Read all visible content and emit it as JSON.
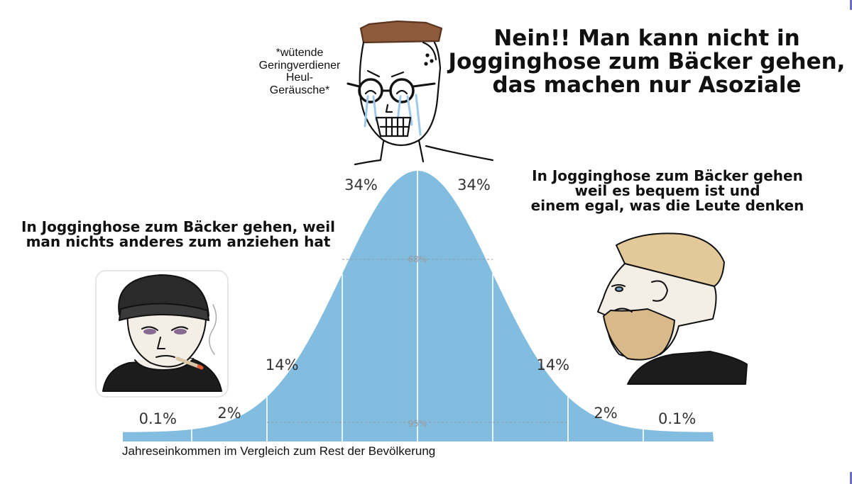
{
  "meme": {
    "top": {
      "title_lines": [
        "Nein!! Man kann nicht in",
        "Jogginghose zum Bäcker gehen,",
        "das machen nur Asoziale"
      ],
      "sound_lines": [
        "*wütende",
        "Geringverdiener",
        "Heul-",
        "Geräusche*"
      ]
    },
    "left_caption_lines": [
      "In Jogginghose zum Bäcker gehen, weil",
      "man nichts anderes zum anziehen hat"
    ],
    "right_caption_lines": [
      "In Jogginghose zum Bäcker gehen",
      "weil es bequem ist und",
      "einem egal, was die Leute denken"
    ]
  },
  "chart_data": {
    "type": "area",
    "xlabel": "Jahreseinkommen im Vergleich zum Rest der Bevölkerung",
    "bands": [
      {
        "label": "0.1%"
      },
      {
        "label": "2%"
      },
      {
        "label": "14%"
      },
      {
        "label": "34%"
      },
      {
        "label": "34%"
      },
      {
        "label": "14%"
      },
      {
        "label": "2%"
      },
      {
        "label": "0.1%"
      }
    ],
    "inner_labels": [
      "68%",
      "95%"
    ],
    "sigma_boundaries": [
      -3,
      -2,
      -1,
      0,
      1,
      2,
      3
    ],
    "x_range": [
      -4,
      4
    ],
    "color": "#82bde0"
  }
}
